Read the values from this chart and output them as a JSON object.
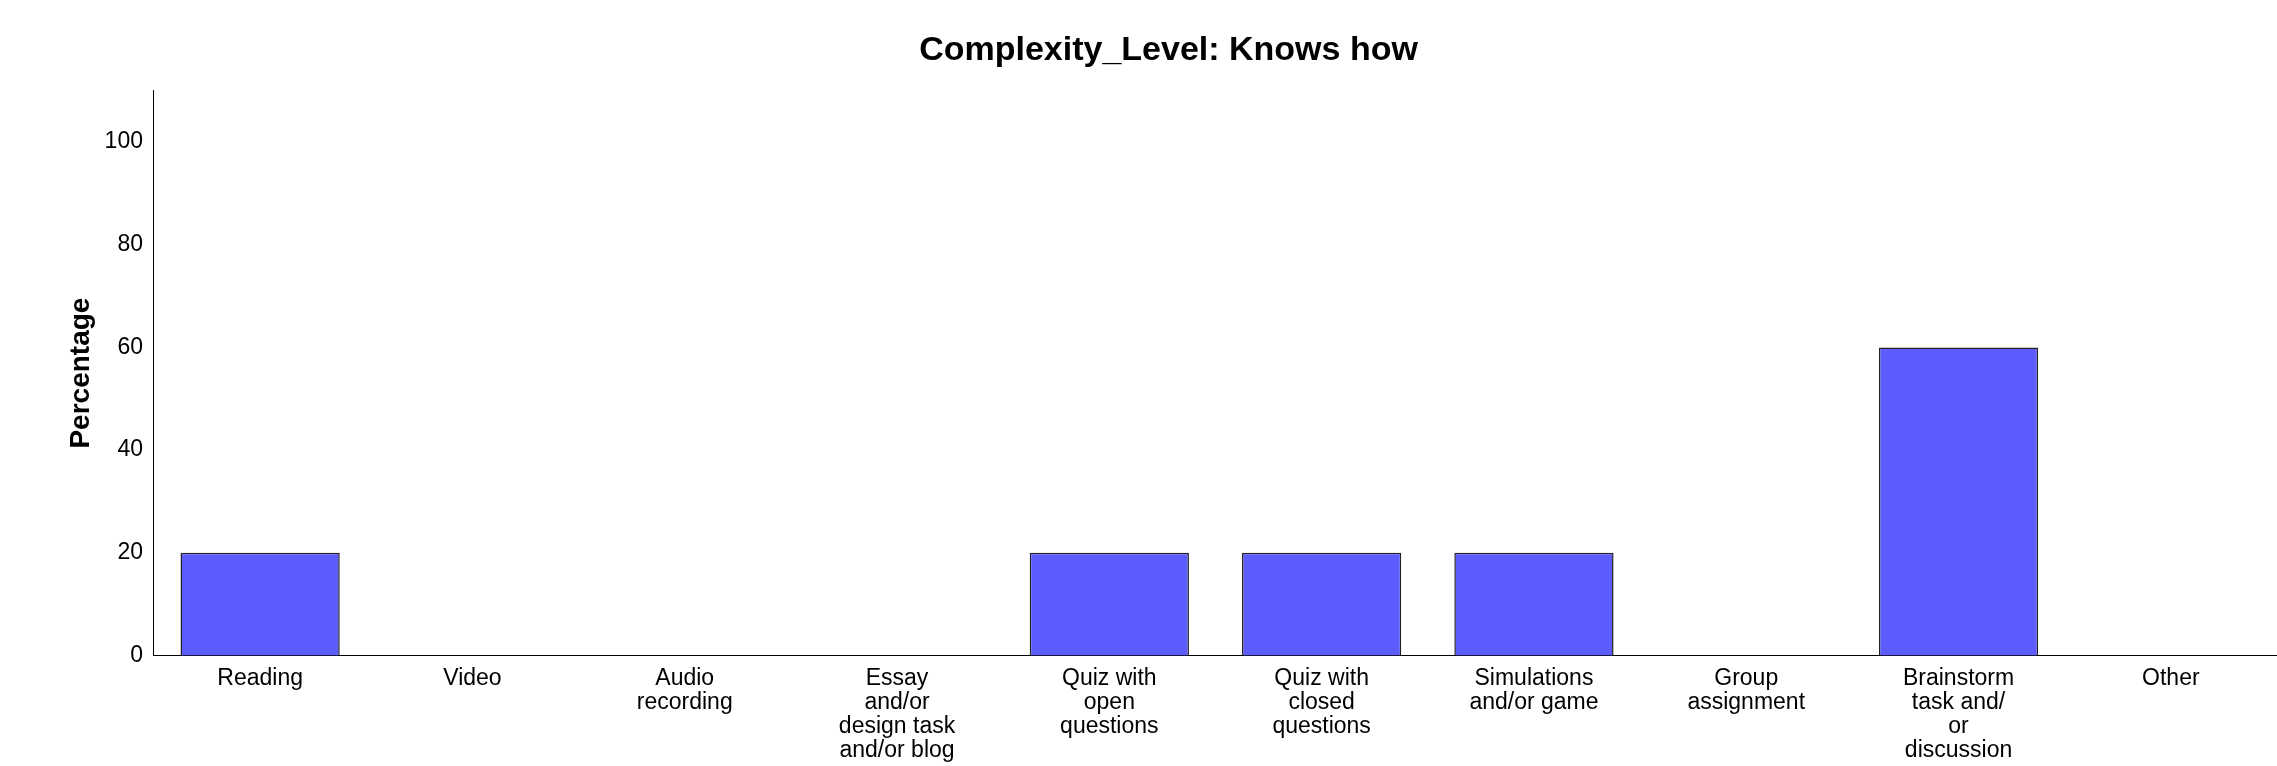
{
  "chart_data": {
    "type": "bar",
    "title": "Complexity_Level: Knows how",
    "ylabel": "Percentage",
    "categories": [
      "Reading",
      "Video",
      "Audio recording",
      "Essay and/or design task and/or blog",
      "Quiz with open questions",
      "Quiz with closed questions",
      "Simulations and/or game",
      "Group assignment",
      "Brainstorm task and/ or discussion",
      "Other"
    ],
    "values": [
      20,
      0,
      0,
      0,
      20,
      20,
      20,
      0,
      60,
      0
    ],
    "color": "#5c5cff",
    "ylim": [
      0,
      110
    ],
    "yticks": [
      0,
      20,
      40,
      60,
      80,
      100
    ],
    "grid": false,
    "legend": false
  }
}
